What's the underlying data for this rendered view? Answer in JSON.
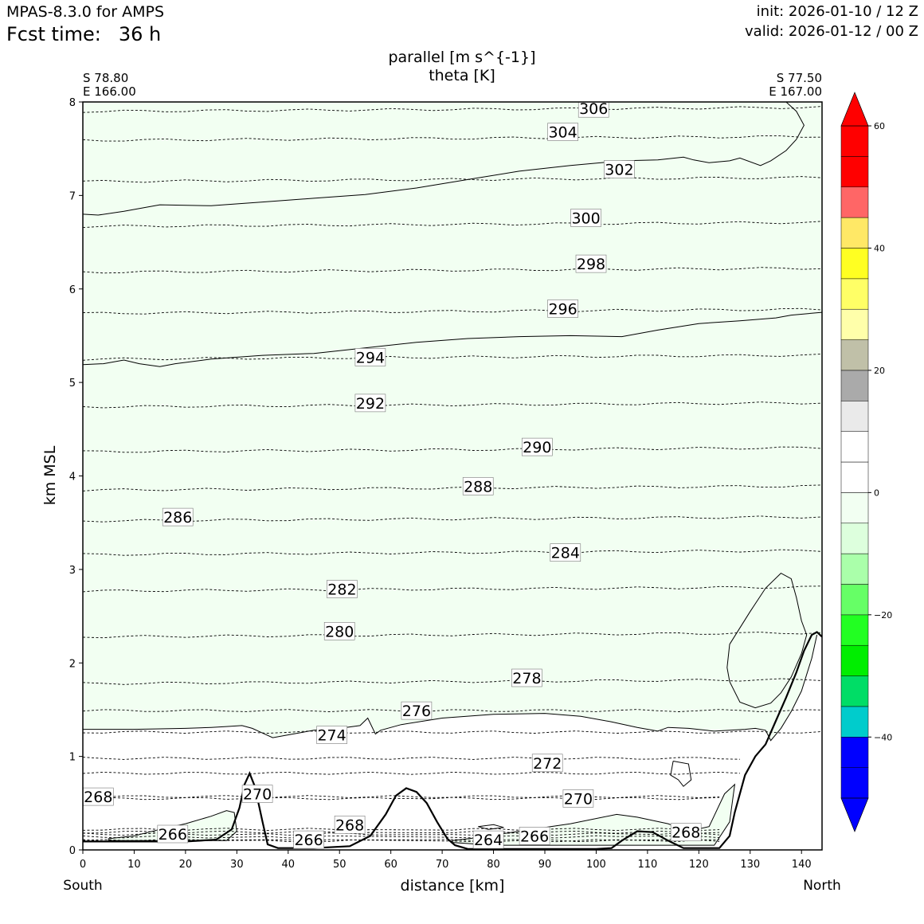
{
  "header": {
    "model": "MPAS-8.3.0 for AMPS",
    "fcst_label": "Fcst time:",
    "fcst_value": "36 h",
    "init": "init: 2026-01-10 / 12 Z",
    "valid": "valid: 2026-01-12 / 00 Z"
  },
  "chart_data": {
    "type": "cross-section contour",
    "title_line1": "parallel [m s^{-1}]",
    "title_line2": "theta [K]",
    "xlabel": "distance [km]",
    "ylabel": "km MSL",
    "xlim": [
      0,
      144
    ],
    "ylim": [
      0,
      8
    ],
    "x_ticks": [
      0,
      10,
      20,
      30,
      40,
      50,
      60,
      70,
      80,
      90,
      100,
      110,
      120,
      130,
      140
    ],
    "y_ticks": [
      0,
      1,
      2,
      3,
      4,
      5,
      6,
      7,
      8
    ],
    "start_point": {
      "lat": "S 78.80",
      "lon": "E 166.00"
    },
    "end_point": {
      "lat": "S 77.50",
      "lon": "E 167.00"
    },
    "left_end_label": "South",
    "right_end_label": "North",
    "colorbar": {
      "levels": [
        -50,
        -45,
        -40,
        -35,
        -30,
        -25,
        -20,
        -15,
        -10,
        -5,
        0,
        5,
        10,
        15,
        20,
        25,
        30,
        35,
        40,
        45,
        50,
        55,
        60
      ],
      "colors": [
        "#0000ff",
        "#0000ff",
        "#00cccc",
        "#00dd66",
        "#00ee00",
        "#22ff22",
        "#66ff66",
        "#aaffaa",
        "#ddffdd",
        "#f2fff2",
        "#ffffff",
        "#ffffff",
        "#eaeaea",
        "#aaaaaa",
        "#c0c0a8",
        "#ffffaa",
        "#ffff66",
        "#ffff22",
        "#ffe866",
        "#ff6666",
        "#ff0000",
        "#ff0000"
      ],
      "under_color": "#0000ff",
      "over_color": "#ff0000",
      "tick_values": [
        -40,
        -20,
        0,
        20,
        40,
        60
      ],
      "tick_labels": [
        "−40",
        "−20",
        "0",
        "20",
        "40",
        "60"
      ]
    },
    "shaded_bands": [
      {
        "name": "parallel -20 to -15",
        "color": "#b0ffb0",
        "lower_boundary": [
          [
            0,
            6.8
          ],
          [
            3,
            6.79
          ],
          [
            8,
            6.83
          ],
          [
            15,
            6.9
          ],
          [
            25,
            6.89
          ],
          [
            35,
            6.93
          ],
          [
            45,
            6.97
          ],
          [
            55,
            7.01
          ],
          [
            65,
            7.08
          ],
          [
            75,
            7.17
          ],
          [
            85,
            7.26
          ],
          [
            95,
            7.32
          ],
          [
            105,
            7.37
          ],
          [
            112,
            7.38
          ],
          [
            117,
            7.41
          ],
          [
            119,
            7.38
          ],
          [
            122,
            7.35
          ],
          [
            126,
            7.37
          ],
          [
            128,
            7.4
          ],
          [
            132,
            7.32
          ],
          [
            134,
            7.37
          ],
          [
            137,
            7.48
          ],
          [
            139,
            7.6
          ],
          [
            140.5,
            7.75
          ],
          [
            139,
            7.9
          ],
          [
            137,
            8
          ]
        ]
      },
      {
        "name": "parallel -15 to -10",
        "color": "#ddffdd",
        "lower_boundary": [
          [
            0,
            5.19
          ],
          [
            4,
            5.2
          ],
          [
            8,
            5.24
          ],
          [
            11,
            5.2
          ],
          [
            15,
            5.17
          ],
          [
            18,
            5.2
          ],
          [
            25,
            5.25
          ],
          [
            35,
            5.29
          ],
          [
            45,
            5.31
          ],
          [
            55,
            5.37
          ],
          [
            65,
            5.43
          ],
          [
            75,
            5.47
          ],
          [
            85,
            5.49
          ],
          [
            95,
            5.5
          ],
          [
            105,
            5.49
          ],
          [
            112,
            5.56
          ],
          [
            120,
            5.63
          ],
          [
            128,
            5.66
          ],
          [
            135,
            5.69
          ],
          [
            138,
            5.72
          ],
          [
            144,
            5.75
          ]
        ]
      },
      {
        "name": "parallel -10 to -5",
        "color": "#f2fff2",
        "lower_boundary": [
          [
            0,
            1.29
          ],
          [
            10,
            1.29
          ],
          [
            20,
            1.3
          ],
          [
            25,
            1.31
          ],
          [
            28,
            1.32
          ],
          [
            31,
            1.33
          ],
          [
            33,
            1.3
          ],
          [
            35,
            1.25
          ],
          [
            37,
            1.2
          ],
          [
            39,
            1.22
          ],
          [
            42,
            1.25
          ],
          [
            45,
            1.28
          ],
          [
            50,
            1.3
          ],
          [
            54,
            1.33
          ],
          [
            55.5,
            1.41
          ],
          [
            57,
            1.24
          ],
          [
            58,
            1.28
          ],
          [
            62,
            1.34
          ],
          [
            70,
            1.41
          ],
          [
            80,
            1.45
          ],
          [
            90,
            1.46
          ],
          [
            97,
            1.43
          ],
          [
            103,
            1.37
          ],
          [
            108,
            1.31
          ],
          [
            112,
            1.27
          ],
          [
            114,
            1.31
          ],
          [
            118,
            1.3
          ],
          [
            123,
            1.27
          ],
          [
            126,
            1.28
          ],
          [
            129,
            1.29
          ],
          [
            131,
            1.3
          ],
          [
            133,
            1.28
          ],
          [
            134,
            1.17
          ],
          [
            136,
            1.3
          ],
          [
            138,
            1.48
          ],
          [
            140,
            1.7
          ],
          [
            142,
            2.05
          ],
          [
            143,
            2.3
          ]
        ]
      },
      {
        "name": "parallel -10 to -5 low-level",
        "color": "#f2fff2",
        "polygon": [
          [
            5,
            0.12
          ],
          [
            10,
            0.15
          ],
          [
            15,
            0.22
          ],
          [
            20,
            0.28
          ],
          [
            25,
            0.36
          ],
          [
            28,
            0.42
          ],
          [
            29.5,
            0.4
          ],
          [
            30,
            0.2
          ],
          [
            28,
            0.1
          ],
          [
            20,
            0.1
          ],
          [
            10,
            0.1
          ],
          [
            5,
            0.1
          ]
        ]
      },
      {
        "name": "parallel -10 to -5 valley",
        "color": "#f2fff2",
        "polygon": [
          [
            72,
            0.1
          ],
          [
            78,
            0.14
          ],
          [
            85,
            0.2
          ],
          [
            95,
            0.28
          ],
          [
            104,
            0.38
          ],
          [
            108,
            0.35
          ],
          [
            114,
            0.28
          ],
          [
            118,
            0.2
          ],
          [
            122,
            0.25
          ],
          [
            125,
            0.6
          ],
          [
            127,
            0.7
          ],
          [
            126,
            0.3
          ],
          [
            123,
            0.05
          ],
          [
            110,
            0.05
          ],
          [
            100,
            0.05
          ],
          [
            90,
            0.05
          ],
          [
            80,
            0.05
          ],
          [
            72,
            0.08
          ]
        ]
      }
    ],
    "zero_contours": [
      [
        [
          126,
          2.2
        ],
        [
          130,
          2.55
        ],
        [
          133,
          2.8
        ],
        [
          136,
          2.96
        ],
        [
          138,
          2.9
        ],
        [
          139,
          2.7
        ],
        [
          140,
          2.45
        ],
        [
          141,
          2.3
        ],
        [
          140,
          2.1
        ],
        [
          138,
          1.85
        ],
        [
          136,
          1.68
        ],
        [
          134,
          1.57
        ],
        [
          131,
          1.52
        ],
        [
          128,
          1.58
        ],
        [
          126,
          1.8
        ],
        [
          125.5,
          1.95
        ],
        [
          126,
          2.2
        ]
      ],
      [
        [
          115,
          0.95
        ],
        [
          118,
          0.92
        ],
        [
          118.5,
          0.75
        ],
        [
          117,
          0.68
        ],
        [
          116,
          0.75
        ],
        [
          114.5,
          0.8
        ],
        [
          115,
          0.95
        ]
      ],
      [
        [
          77,
          0.25
        ],
        [
          80,
          0.27
        ],
        [
          82,
          0.24
        ],
        [
          79,
          0.22
        ],
        [
          77,
          0.25
        ]
      ]
    ],
    "theta_contours": [
      {
        "value": 306,
        "y": 7.92,
        "label_x": 99.5,
        "label_y": 7.93
      },
      {
        "value": 304,
        "y": 7.61,
        "label_x": 93.5,
        "label_y": 7.68
      },
      {
        "value": 302,
        "y": 7.17,
        "label_x": 104.5,
        "label_y": 7.28
      },
      {
        "value": 300,
        "y": 6.69,
        "label_x": 98,
        "label_y": 6.76
      },
      {
        "value": 298,
        "y": 6.2,
        "label_x": 99,
        "label_y": 6.27
      },
      {
        "value": 296,
        "y": 5.76,
        "label_x": 93.5,
        "label_y": 5.79
      },
      {
        "value": 294,
        "y": 5.27,
        "label_x": 56,
        "label_y": 5.27
      },
      {
        "value": 292,
        "y": 4.76,
        "label_x": 56,
        "label_y": 4.78
      },
      {
        "value": 290,
        "y": 4.28,
        "label_x": 88.5,
        "label_y": 4.31
      },
      {
        "value": 288,
        "y": 3.87,
        "label_x": 77,
        "label_y": 3.89
      },
      {
        "value": 286,
        "y": 3.54,
        "label_x": 18.5,
        "label_y": 3.56
      },
      {
        "value": 284,
        "y": 3.18,
        "label_x": 94,
        "label_y": 3.18
      },
      {
        "value": 282,
        "y": 2.79,
        "label_x": 50.5,
        "label_y": 2.79
      },
      {
        "value": 280,
        "y": 2.3,
        "label_x": 50,
        "label_y": 2.34
      },
      {
        "value": 278,
        "y": 1.8,
        "label_x": 86.5,
        "label_y": 1.84
      },
      {
        "value": 276,
        "y": 1.49,
        "label_x": 65,
        "label_y": 1.49
      },
      {
        "value": 274,
        "y": 1.26,
        "label_x": 48.5,
        "label_y": 1.23
      },
      {
        "value": 272,
        "y": 0.98,
        "label_x": 90.5,
        "label_y": 0.93
      },
      {
        "value": 270,
        "y": 0.82,
        "label_x": 34,
        "label_y": 0.6
      },
      {
        "value": 270,
        "y": 0.55,
        "label_x": 96.5,
        "label_y": 0.55
      },
      {
        "value": 268,
        "y": 0.57,
        "label_x": 3,
        "label_y": 0.57
      },
      {
        "value": 268,
        "y": 0.22,
        "label_x": 52,
        "label_y": 0.27
      },
      {
        "value": 268,
        "y": 0.19,
        "label_x": 117.5,
        "label_y": 0.19
      },
      {
        "value": 266,
        "y": 0.17,
        "label_x": 17.5,
        "label_y": 0.17
      },
      {
        "value": 266,
        "y": 0.1,
        "label_x": 44,
        "label_y": 0.11
      },
      {
        "value": 266,
        "y": 0.14,
        "label_x": 88,
        "label_y": 0.15
      },
      {
        "value": 264,
        "y": 0.1,
        "label_x": 79,
        "label_y": 0.11
      }
    ],
    "terrain": [
      [
        0,
        0.09
      ],
      [
        20,
        0.09
      ],
      [
        26,
        0.11
      ],
      [
        29,
        0.22
      ],
      [
        30.5,
        0.45
      ],
      [
        31.5,
        0.7
      ],
      [
        32.5,
        0.82
      ],
      [
        33.5,
        0.68
      ],
      [
        35,
        0.3
      ],
      [
        36,
        0.06
      ],
      [
        38,
        0.02
      ],
      [
        45,
        0.02
      ],
      [
        52,
        0.04
      ],
      [
        56,
        0.15
      ],
      [
        59,
        0.38
      ],
      [
        61,
        0.58
      ],
      [
        63,
        0.66
      ],
      [
        65,
        0.62
      ],
      [
        67,
        0.5
      ],
      [
        69,
        0.3
      ],
      [
        71,
        0.12
      ],
      [
        72.5,
        0.05
      ],
      [
        75,
        0.01
      ],
      [
        90,
        0.01
      ],
      [
        100,
        0.01
      ],
      [
        103,
        0.02
      ],
      [
        105,
        0.1
      ],
      [
        108,
        0.2
      ],
      [
        111,
        0.19
      ],
      [
        114,
        0.1
      ],
      [
        117,
        0.02
      ],
      [
        124,
        0.02
      ],
      [
        126,
        0.15
      ],
      [
        127,
        0.4
      ],
      [
        129,
        0.8
      ],
      [
        131,
        1.0
      ],
      [
        133,
        1.13
      ],
      [
        135,
        1.38
      ],
      [
        137,
        1.63
      ],
      [
        139,
        1.9
      ],
      [
        140.5,
        2.13
      ],
      [
        142,
        2.3
      ],
      [
        143,
        2.33
      ],
      [
        144,
        2.28
      ]
    ]
  }
}
